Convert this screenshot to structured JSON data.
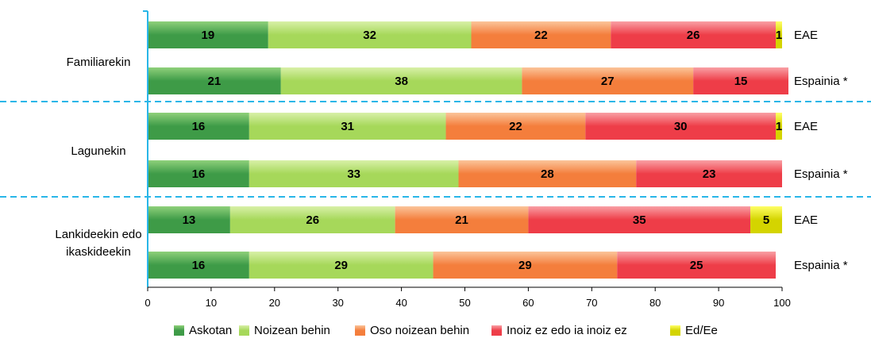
{
  "chart_data": {
    "type": "bar",
    "orientation": "horizontal",
    "stacked": true,
    "xlim": [
      0,
      100
    ],
    "xticks": [
      0,
      10,
      20,
      30,
      40,
      50,
      60,
      70,
      80,
      90,
      100
    ],
    "grid": false,
    "legend_position": "bottom",
    "groups": [
      {
        "label_lines": [
          "Familiarekin"
        ],
        "rows": [
          {
            "label": "EAE",
            "values": [
              19,
              32,
              22,
              26,
              1
            ]
          },
          {
            "label": "Espainia *",
            "values": [
              21,
              38,
              27,
              15,
              0
            ]
          }
        ]
      },
      {
        "label_lines": [
          "Lagunekin"
        ],
        "rows": [
          {
            "label": "EAE",
            "values": [
              16,
              31,
              22,
              30,
              1
            ]
          },
          {
            "label": "Espainia *",
            "values": [
              16,
              33,
              28,
              23,
              0
            ]
          }
        ]
      },
      {
        "label_lines": [
          "Lankideekin edo",
          "ikaskideekin"
        ],
        "rows": [
          {
            "label": "EAE",
            "values": [
              13,
              26,
              21,
              35,
              5
            ]
          },
          {
            "label": "Espainia *",
            "values": [
              16,
              29,
              29,
              25,
              0
            ]
          }
        ]
      }
    ],
    "series": [
      {
        "name": "Askotan",
        "color": "#3E9B47",
        "color_light": "#8FD07A"
      },
      {
        "name": "Noizean behin",
        "color": "#A6D85A",
        "color_light": "#D8F0A8"
      },
      {
        "name": "Oso noizean behin",
        "color": "#F47E3C",
        "color_light": "#FBC49A"
      },
      {
        "name": "Inoiz ez edo ia inoiz ez",
        "color": "#EE3D48",
        "color_light": "#F9A0A5"
      },
      {
        "name": "Ed/Ee",
        "color": "#D4D400",
        "color_light": "#FFFF66"
      }
    ],
    "separator_color": "#29B6E8"
  }
}
